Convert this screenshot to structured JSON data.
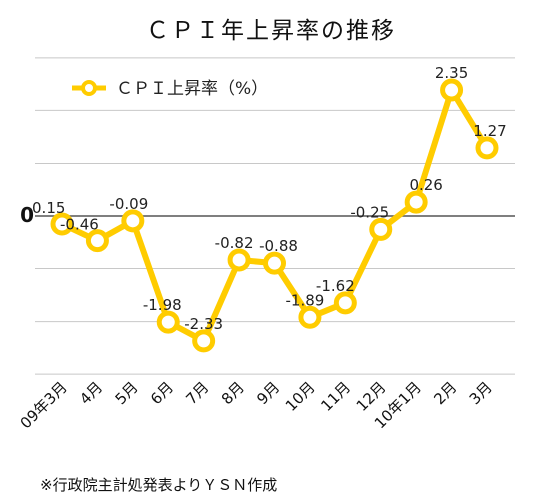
{
  "chart_data": {
    "type": "line",
    "title": "ＣＰＩ年上昇率の推移",
    "categories": [
      "09年3月",
      "4月",
      "5月",
      "6月",
      "7月",
      "8月",
      "9月",
      "10月",
      "11月",
      "12月",
      "10年1月",
      "2月",
      "3月"
    ],
    "series": [
      {
        "name": "ＣＰＩ上昇率（%）",
        "values": [
          -0.15,
          -0.46,
          -0.09,
          -1.98,
          -2.33,
          -0.82,
          -0.88,
          -1.89,
          -1.62,
          -0.25,
          0.26,
          2.35,
          1.27
        ],
        "labels": [
          "-0.15",
          "-0.46",
          "-0.09",
          "-1.98",
          "-2.33",
          "-0.82",
          "-0.88",
          "-1.89",
          "-1.62",
          "-0.25",
          "0.26",
          "2.35",
          "1.27"
        ],
        "color": "#FFCC00"
      }
    ],
    "zero_label": "0",
    "ylim": [
      -2.95,
      2.95
    ],
    "gridlines": [
      -2.95,
      -1.97,
      -0.98,
      0,
      0.98,
      1.97,
      2.95
    ],
    "grid": true,
    "legend": "top-left"
  },
  "note": "※行政院主計処発表よりＹＳＮ作成"
}
